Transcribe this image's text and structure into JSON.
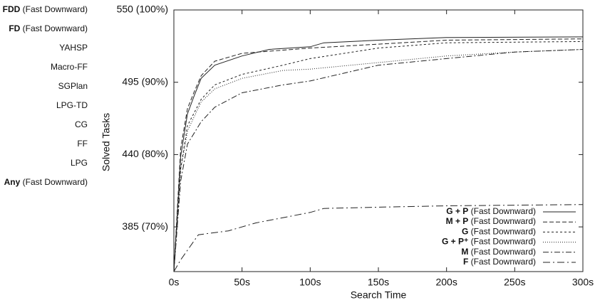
{
  "sidebar_labels": [
    "FDD (Fast Downward)",
    "FD (Fast Downward)",
    "YAHSP",
    "Macro-FF",
    "SGPlan",
    "LPG-TD",
    "CG",
    "FF",
    "LPG",
    "Any (Fast Downward)"
  ],
  "chart_data": {
    "type": "line",
    "x_label": "Search Time",
    "y_label": "Solved Tasks",
    "xlim": [
      0,
      300
    ],
    "xticks": [
      {
        "value": 0,
        "label": "0s"
      },
      {
        "value": 50,
        "label": "50s"
      },
      {
        "value": 100,
        "label": "100s"
      },
      {
        "value": 150,
        "label": "150s"
      },
      {
        "value": 200,
        "label": "200s"
      },
      {
        "value": 250,
        "label": "250s"
      },
      {
        "value": 300,
        "label": "300s"
      }
    ],
    "ylim": [
      351,
      550
    ],
    "yticks": [
      {
        "value": 385,
        "label": "385 (70%)"
      },
      {
        "value": 440,
        "label": "440 (80%)"
      },
      {
        "value": 495,
        "label": "495 (90%)"
      },
      {
        "value": 550,
        "label": "550 (100%)"
      }
    ],
    "legend": "lower right",
    "series": [
      {
        "name": "G + P (Fast Downward)",
        "color": "#222222",
        "dash": "solid",
        "x": [
          0,
          5,
          10,
          15,
          20,
          30,
          50,
          70,
          100,
          110,
          150,
          200,
          300
        ],
        "values": [
          351,
          439,
          471,
          485,
          498,
          508,
          515,
          520,
          522,
          525,
          527,
          529,
          529.5
        ]
      },
      {
        "name": "M + P (Fast Downward)",
        "color": "#222222",
        "dash": "dashed",
        "x": [
          0,
          5,
          10,
          15,
          20,
          30,
          50,
          100,
          150,
          200,
          300
        ],
        "values": [
          351,
          445,
          475,
          488,
          500,
          511,
          517,
          521,
          524,
          527,
          528
        ]
      },
      {
        "name": "G (Fast Downward)",
        "color": "#222222",
        "dash": "short-dashed",
        "x": [
          0,
          5,
          10,
          20,
          30,
          50,
          80,
          100,
          150,
          200,
          300
        ],
        "values": [
          351,
          430,
          462,
          482,
          493,
          501,
          508,
          513,
          521,
          525,
          526
        ]
      },
      {
        "name": "G + P⁺ (Fast Downward)",
        "color": "#222222",
        "dash": "dotted",
        "x": [
          0,
          5,
          10,
          20,
          30,
          50,
          80,
          100,
          150,
          200,
          250,
          300
        ],
        "values": [
          351,
          428,
          458,
          480,
          490,
          498,
          504,
          505,
          510,
          515,
          518,
          520
        ]
      },
      {
        "name": "M (Fast Downward)",
        "color": "#222222",
        "dash": "dash-dot",
        "x": [
          0,
          5,
          10,
          20,
          30,
          50,
          80,
          100,
          150,
          200,
          250,
          300
        ],
        "values": [
          351,
          420,
          448,
          465,
          476,
          487,
          493,
          496,
          508,
          513,
          518,
          520
        ]
      },
      {
        "name": "F (Fast Downward)",
        "color": "#222222",
        "dash": "long-dash-dot",
        "x": [
          0,
          5,
          18,
          40,
          60,
          70,
          100,
          110,
          150,
          200,
          300
        ],
        "values": [
          351,
          360,
          379,
          382,
          388,
          390,
          396,
          399,
          400,
          401,
          402
        ]
      }
    ]
  }
}
